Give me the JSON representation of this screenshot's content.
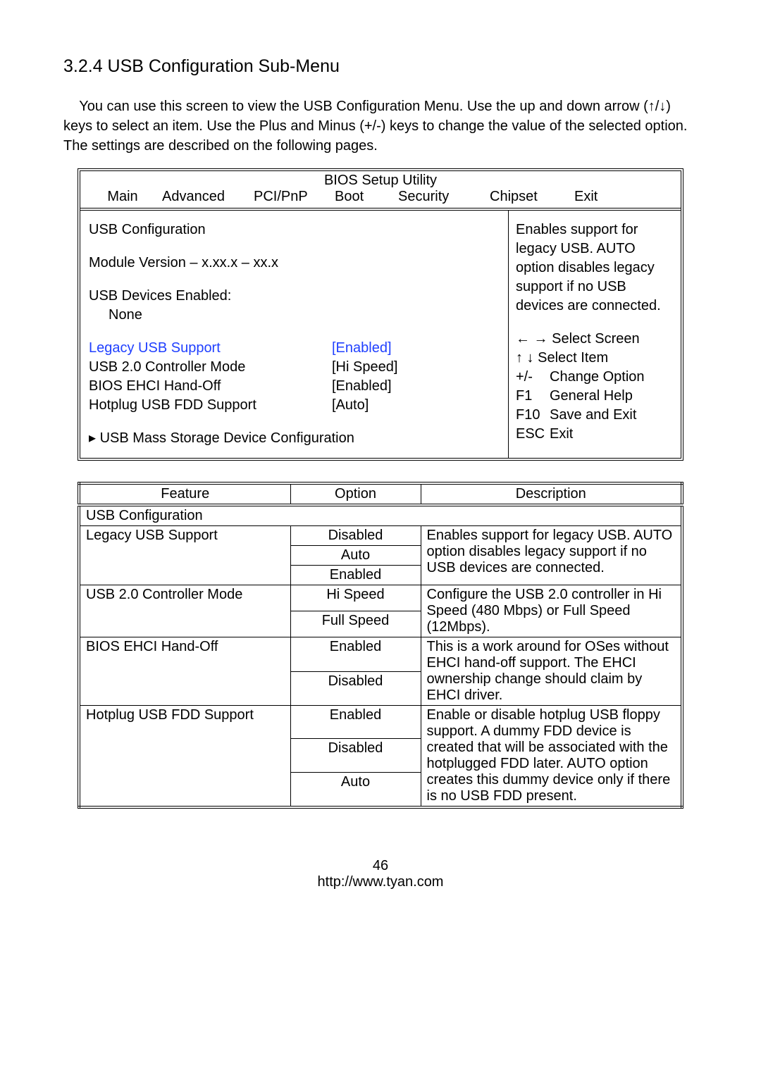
{
  "heading": "3.2.4 USB Configuration Sub-Menu",
  "intro": "You can use this screen to view the USB Configuration Menu. Use the up and down arrow (↑/↓) keys to select an item. Use the Plus and Minus (+/-) keys to change the value of the selected option. The settings are described on the following pages.",
  "bios": {
    "title": "BIOS Setup Utility",
    "tabs": {
      "main": "Main",
      "advanced": "Advanced",
      "pci": "PCI/PnP",
      "boot": "Boot",
      "security": "Security",
      "chipset": "Chipset",
      "exit": "Exit"
    },
    "left": {
      "section": "USB Configuration",
      "module": "Module Version – x.xx.x – xx.x",
      "devicesLabel": "USB Devices Enabled:",
      "devicesValue": "None",
      "settings": [
        {
          "label": "Legacy USB Support",
          "value": "[Enabled]",
          "hl": true
        },
        {
          "label": "USB 2.0 Controller Mode",
          "value": "[Hi Speed]",
          "hl": false
        },
        {
          "label": "BIOS EHCI Hand-Off",
          "value": "[Enabled]",
          "hl": false
        },
        {
          "label": "Hotplug USB FDD Support",
          "value": "[Auto]",
          "hl": false
        }
      ],
      "submenu": "▸ USB Mass Storage Device Configuration"
    },
    "right": {
      "help1": "Enables support for legacy USB.  AUTO option disables legacy support if no USB devices are connected.",
      "nav": {
        "selectScreen": "← → Select Screen",
        "selectItem": "↑  ↓  Select Item",
        "change_k": "+/-",
        "change_v": "Change Option",
        "help_k": "F1",
        "help_v": "General Help",
        "save_k": "F10",
        "save_v": "Save and Exit",
        "exit_k": "ESC",
        "exit_v": "Exit"
      }
    }
  },
  "table": {
    "headers": {
      "feature": "Feature",
      "option": "Option",
      "description": "Description"
    },
    "section": "USB Configuration",
    "rows": [
      {
        "feature": "Legacy USB Support",
        "options": [
          "Disabled",
          "Auto",
          "Enabled"
        ],
        "desc": "Enables support for legacy USB.  AUTO option disables legacy support if no USB devices are connected."
      },
      {
        "feature": "USB 2.0 Controller Mode",
        "options": [
          "Hi Speed",
          "Full Speed"
        ],
        "desc": "Configure the USB 2.0 controller in Hi Speed (480 Mbps) or Full Speed (12Mbps)."
      },
      {
        "feature": "BIOS EHCI Hand-Off",
        "options": [
          "Enabled",
          "Disabled"
        ],
        "desc": "This is a work around for OSes without EHCI hand-off support.  The EHCI ownership change should claim by EHCI driver."
      },
      {
        "feature": "Hotplug USB FDD Support",
        "options": [
          "Enabled",
          "Disabled",
          "Auto"
        ],
        "desc": "Enable or disable hotplug USB floppy support.  A dummy FDD device is created that will be associated with the hotplugged FDD later.  AUTO option creates this dummy device only if there is no USB FDD present."
      }
    ]
  },
  "footer": {
    "page": "46",
    "url": "http://www.tyan.com"
  }
}
